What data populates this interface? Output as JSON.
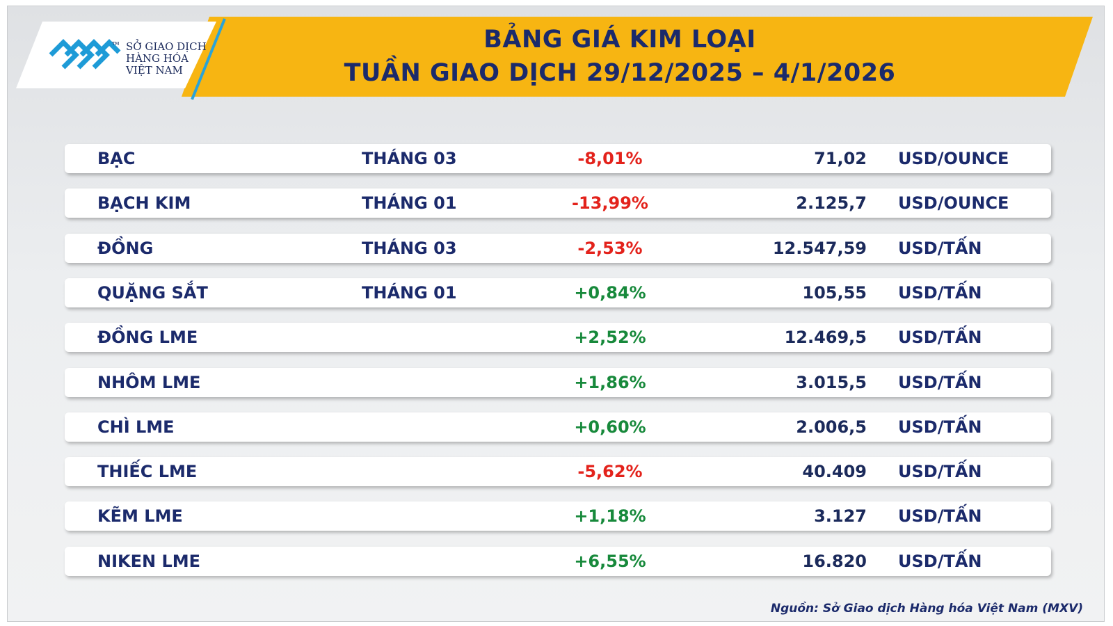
{
  "header": {
    "logo": {
      "lines": [
        "SỞ GIAO DỊCH",
        "HÀNG HÓA",
        "VIỆT NAM"
      ],
      "tm": "TM"
    },
    "title": [
      "BẢNG GIÁ KIM LOẠI",
      "TUẦN GIAO DỊCH 29/12/2025 – 4/1/2026"
    ]
  },
  "table": {
    "rows": [
      [
        "BẠC",
        "THÁNG 03",
        "-8,01%",
        "71,02",
        "USD/OUNCE"
      ],
      [
        "BẠCH KIM",
        "THÁNG 01",
        "-13,99%",
        "2.125,7",
        "USD/OUNCE"
      ],
      [
        "ĐỒNG",
        "THÁNG 03",
        "-2,53%",
        "12.547,59",
        "USD/TẤN"
      ],
      [
        "QUẶNG SẮT",
        "THÁNG 01",
        "+0,84%",
        "105,55",
        "USD/TẤN"
      ],
      [
        "ĐỒNG LME",
        null,
        "+2,52%",
        "12.469,5",
        "USD/TẤN"
      ],
      [
        "NHÔM LME",
        null,
        "+1,86%",
        "3.015,5",
        "USD/TẤN"
      ],
      [
        "CHÌ LME",
        null,
        "+0,60%",
        "2.006,5",
        "USD/TẤN"
      ],
      [
        "THIẾC LME",
        null,
        "-5,62%",
        "40.409",
        "USD/TẤN"
      ],
      [
        "KẼM LME",
        null,
        "+1,18%",
        "3.127",
        "USD/TẤN"
      ],
      [
        "NIKEN LME",
        null,
        "+6,55%",
        "16.820",
        "USD/TẤN"
      ]
    ]
  },
  "footer": {
    "source": "Nguồn: Sở Giao dịch Hàng hóa Việt Nam (MXV)"
  }
}
